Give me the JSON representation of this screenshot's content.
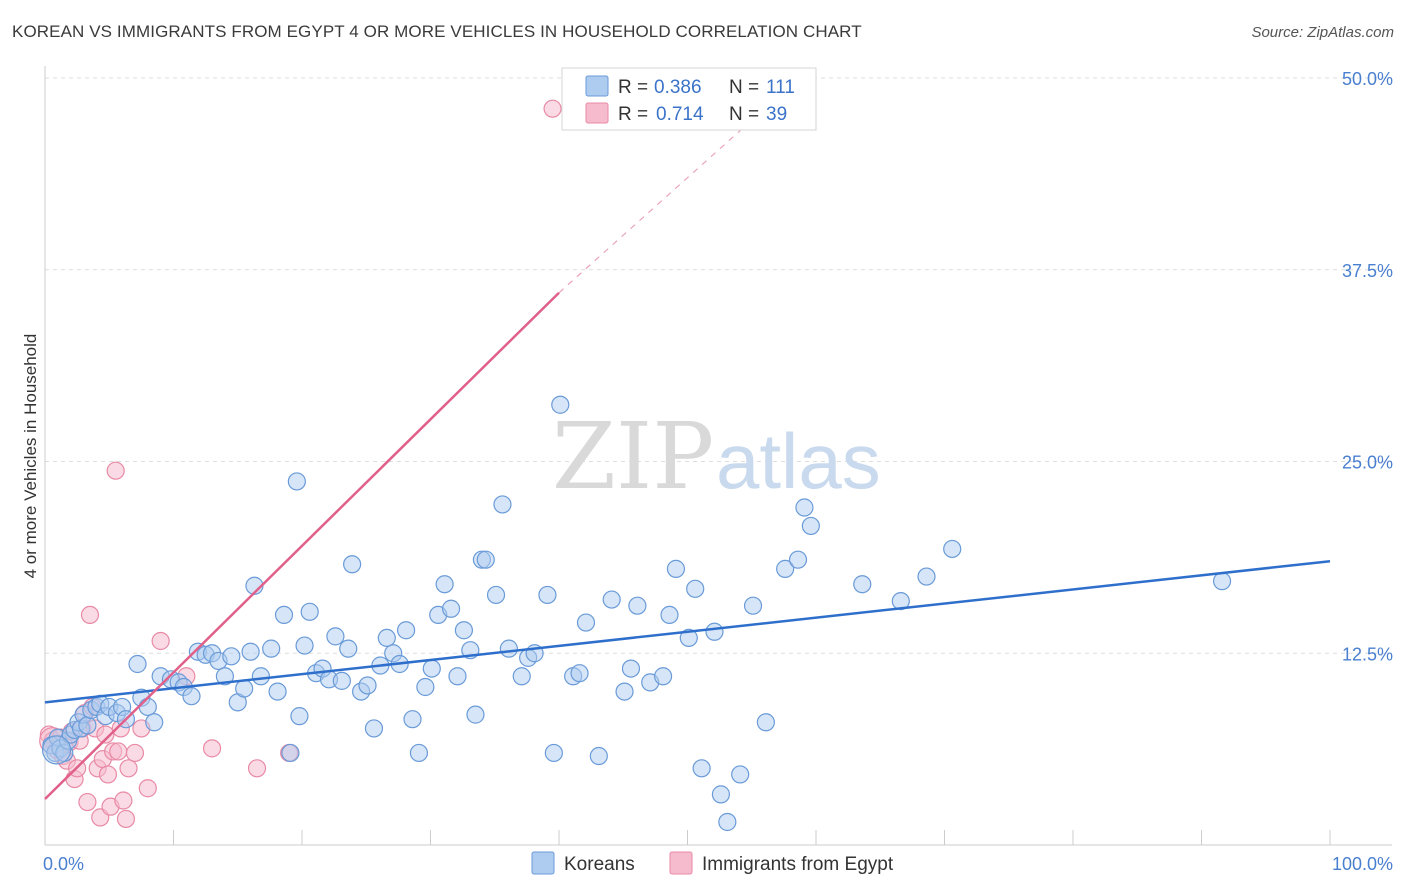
{
  "title": "KOREAN VS IMMIGRANTS FROM EGYPT 4 OR MORE VEHICLES IN HOUSEHOLD CORRELATION CHART",
  "source": "Source: ZipAtlas.com",
  "colors": {
    "blue_fill": "#aecbf0",
    "blue_stroke": "#6a9bd8",
    "blue_line": "#2f6fcc",
    "pink_fill": "#f6bccd",
    "pink_stroke": "#e88aa6",
    "pink_line": "#e0608a",
    "axis_text": "#4a7fd0",
    "grid": "#dddddd"
  },
  "legend": {
    "r_label": "R =",
    "n_label": "N =",
    "series": [
      {
        "r": "0.386",
        "n": "111"
      },
      {
        "r": "0.714",
        "n": "39"
      }
    ]
  },
  "watermark": {
    "zip": "ZIP",
    "atlas": "atlas"
  },
  "chart_data": {
    "type": "scatter",
    "title": "KOREAN VS IMMIGRANTS FROM EGYPT 4 OR MORE VEHICLES IN HOUSEHOLD CORRELATION CHART",
    "xlabel": "",
    "ylabel": "4 or more Vehicles in Household",
    "xlim": [
      0,
      100
    ],
    "ylim": [
      0,
      50
    ],
    "x_tick_labels": [
      "0.0%",
      "100.0%"
    ],
    "y_ticks": [
      12.5,
      25.0,
      37.5,
      50.0
    ],
    "y_tick_labels": [
      "12.5%",
      "25.0%",
      "37.5%",
      "50.0%"
    ],
    "grid": true,
    "legend_position": "top-center",
    "series": [
      {
        "name": "Koreans",
        "trendline": {
          "x": [
            0,
            100
          ],
          "y": [
            9.3,
            18.5
          ],
          "dashed_extension": false
        },
        "points": [
          [
            0.5,
            6.5
          ],
          [
            0.8,
            6.0
          ],
          [
            1.0,
            7.0
          ],
          [
            1.2,
            6.3
          ],
          [
            1.5,
            6.0
          ],
          [
            1.8,
            6.8
          ],
          [
            2.0,
            7.2
          ],
          [
            2.3,
            7.5
          ],
          [
            2.6,
            8.0
          ],
          [
            2.8,
            7.6
          ],
          [
            3.0,
            8.5
          ],
          [
            3.3,
            7.8
          ],
          [
            3.6,
            8.8
          ],
          [
            4.0,
            9.0
          ],
          [
            4.3,
            9.2
          ],
          [
            4.7,
            8.4
          ],
          [
            5.0,
            9.0
          ],
          [
            5.6,
            8.6
          ],
          [
            6.0,
            9.0
          ],
          [
            6.3,
            8.2
          ],
          [
            7.2,
            11.8
          ],
          [
            7.5,
            9.6
          ],
          [
            8.0,
            9.0
          ],
          [
            8.5,
            8.0
          ],
          [
            9.0,
            11.0
          ],
          [
            9.8,
            10.8
          ],
          [
            10.4,
            10.6
          ],
          [
            10.8,
            10.3
          ],
          [
            11.4,
            9.7
          ],
          [
            11.9,
            12.6
          ],
          [
            12.5,
            12.4
          ],
          [
            13.0,
            12.5
          ],
          [
            13.5,
            12.0
          ],
          [
            14.0,
            11.0
          ],
          [
            14.5,
            12.3
          ],
          [
            15.0,
            9.3
          ],
          [
            15.5,
            10.2
          ],
          [
            16.0,
            12.6
          ],
          [
            16.3,
            16.9
          ],
          [
            16.8,
            11.0
          ],
          [
            17.6,
            12.8
          ],
          [
            18.1,
            10.0
          ],
          [
            18.6,
            15.0
          ],
          [
            19.1,
            6.0
          ],
          [
            19.6,
            23.7
          ],
          [
            19.8,
            8.4
          ],
          [
            20.2,
            13.0
          ],
          [
            20.6,
            15.2
          ],
          [
            21.1,
            11.2
          ],
          [
            21.6,
            11.5
          ],
          [
            22.1,
            10.8
          ],
          [
            22.6,
            13.6
          ],
          [
            23.1,
            10.7
          ],
          [
            23.6,
            12.8
          ],
          [
            23.9,
            18.3
          ],
          [
            24.6,
            10.0
          ],
          [
            25.1,
            10.4
          ],
          [
            25.6,
            7.6
          ],
          [
            26.1,
            11.7
          ],
          [
            26.6,
            13.5
          ],
          [
            27.1,
            12.5
          ],
          [
            27.6,
            11.8
          ],
          [
            28.1,
            14.0
          ],
          [
            28.6,
            8.2
          ],
          [
            29.1,
            6.0
          ],
          [
            29.6,
            10.3
          ],
          [
            30.1,
            11.5
          ],
          [
            30.6,
            15.0
          ],
          [
            31.1,
            17.0
          ],
          [
            31.6,
            15.4
          ],
          [
            32.1,
            11.0
          ],
          [
            32.6,
            14.0
          ],
          [
            33.1,
            12.7
          ],
          [
            33.5,
            8.5
          ],
          [
            34.0,
            18.6
          ],
          [
            34.3,
            18.6
          ],
          [
            35.1,
            16.3
          ],
          [
            35.6,
            22.2
          ],
          [
            36.1,
            12.8
          ],
          [
            37.1,
            11.0
          ],
          [
            37.6,
            12.2
          ],
          [
            38.1,
            12.5
          ],
          [
            39.1,
            16.3
          ],
          [
            39.6,
            6.0
          ],
          [
            40.1,
            28.7
          ],
          [
            41.1,
            11.0
          ],
          [
            41.6,
            11.2
          ],
          [
            42.1,
            14.5
          ],
          [
            43.1,
            5.8
          ],
          [
            44.1,
            16.0
          ],
          [
            45.1,
            10.0
          ],
          [
            45.6,
            11.5
          ],
          [
            46.1,
            15.6
          ],
          [
            47.1,
            10.6
          ],
          [
            48.1,
            11.0
          ],
          [
            48.6,
            15.0
          ],
          [
            49.1,
            18.0
          ],
          [
            50.1,
            13.5
          ],
          [
            50.6,
            16.7
          ],
          [
            51.1,
            5.0
          ],
          [
            52.1,
            13.9
          ],
          [
            52.6,
            3.3
          ],
          [
            53.1,
            1.5
          ],
          [
            54.1,
            4.6
          ],
          [
            55.1,
            15.6
          ],
          [
            56.1,
            8.0
          ],
          [
            57.6,
            18.0
          ],
          [
            58.6,
            18.6
          ],
          [
            59.1,
            22.0
          ],
          [
            59.6,
            20.8
          ],
          [
            63.6,
            17.0
          ],
          [
            66.6,
            15.9
          ],
          [
            68.6,
            17.5
          ],
          [
            70.6,
            19.3
          ],
          [
            91.6,
            17.2
          ]
        ]
      },
      {
        "name": "Immigrants from Egypt",
        "trendline": {
          "x": [
            0,
            40,
            56
          ],
          "y": [
            3.0,
            36.0,
            48.0
          ],
          "dashed_extension": true
        },
        "points": [
          [
            0.3,
            7.2
          ],
          [
            0.6,
            6.8
          ],
          [
            0.9,
            6.2
          ],
          [
            1.2,
            7.0
          ],
          [
            1.4,
            5.8
          ],
          [
            1.7,
            5.5
          ],
          [
            1.9,
            6.7
          ],
          [
            2.1,
            7.4
          ],
          [
            2.3,
            4.3
          ],
          [
            2.5,
            5.0
          ],
          [
            2.7,
            6.8
          ],
          [
            2.9,
            7.6
          ],
          [
            3.1,
            8.6
          ],
          [
            3.3,
            2.8
          ],
          [
            3.5,
            15.0
          ],
          [
            3.7,
            9.0
          ],
          [
            3.9,
            7.6
          ],
          [
            4.1,
            5.0
          ],
          [
            4.3,
            1.8
          ],
          [
            4.5,
            5.6
          ],
          [
            4.7,
            7.2
          ],
          [
            4.9,
            4.6
          ],
          [
            5.1,
            2.5
          ],
          [
            5.3,
            6.1
          ],
          [
            5.5,
            24.4
          ],
          [
            5.7,
            6.1
          ],
          [
            5.9,
            7.6
          ],
          [
            6.1,
            2.9
          ],
          [
            6.3,
            1.7
          ],
          [
            6.5,
            5.0
          ],
          [
            7.0,
            6.0
          ],
          [
            7.5,
            7.6
          ],
          [
            8.0,
            3.7
          ],
          [
            9.0,
            13.3
          ],
          [
            11.0,
            11.0
          ],
          [
            13.0,
            6.3
          ],
          [
            16.5,
            5.0
          ],
          [
            19.0,
            6.0
          ],
          [
            39.5,
            48.0
          ]
        ]
      }
    ]
  },
  "bottom_legend": [
    {
      "label": "Koreans"
    },
    {
      "label": "Immigrants from Egypt"
    }
  ]
}
